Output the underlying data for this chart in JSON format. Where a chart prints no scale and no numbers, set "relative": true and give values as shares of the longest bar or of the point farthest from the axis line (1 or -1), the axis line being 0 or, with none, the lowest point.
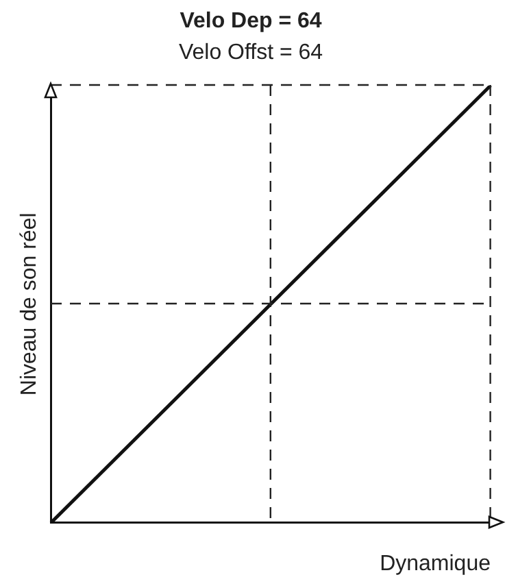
{
  "chart_data": {
    "type": "line",
    "title": "Velo Dep = 64",
    "subtitle": "Velo Offst = 64",
    "xlabel": "Dynamique",
    "ylabel": "Niveau de son réel",
    "relative": true,
    "legend": false,
    "marker": "none",
    "categories": [
      null,
      null,
      null
    ],
    "series": [
      {
        "color": "#111111",
        "values": [
          0,
          0.5,
          1
        ]
      }
    ]
  }
}
